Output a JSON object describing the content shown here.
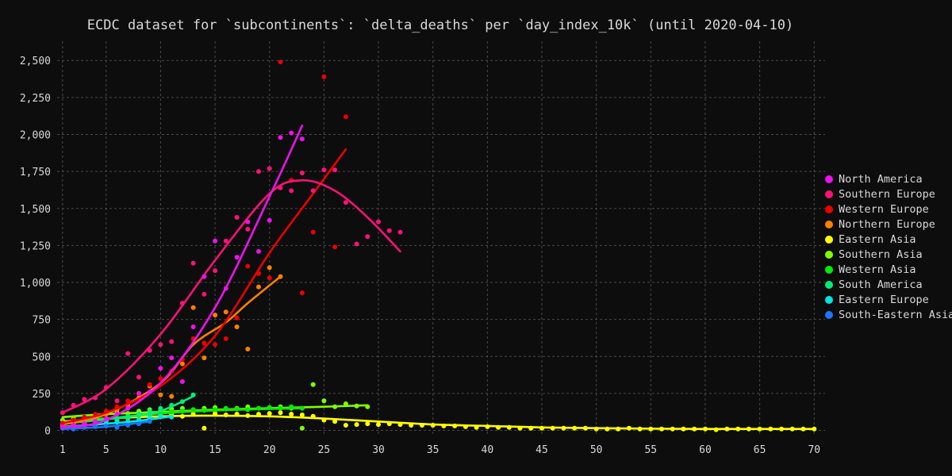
{
  "chart_data": {
    "type": "scatter",
    "title": "ECDC dataset for `subcontinents`: `delta_deaths` per `day_index_10k` (until 2020-04-10)",
    "xlabel": "",
    "ylabel": "",
    "xlim": [
      0.5,
      71
    ],
    "ylim": [
      -40,
      2630
    ],
    "x_ticks": [
      1,
      5,
      10,
      15,
      20,
      25,
      30,
      35,
      40,
      45,
      50,
      55,
      60,
      65,
      70
    ],
    "y_ticks": [
      0,
      250,
      500,
      750,
      1000,
      1250,
      1500,
      1750,
      2000,
      2250,
      2500
    ],
    "y_tick_labels": [
      "0",
      "250",
      "500",
      "750",
      "1,000",
      "1,250",
      "1,500",
      "1,750",
      "2,000",
      "2,250",
      "2,500"
    ],
    "grid": true,
    "legend_position": "right",
    "trend_lines": true,
    "series": [
      {
        "name": "Eastern Asia",
        "color": "#ffff00",
        "x": [
          1,
          2,
          3,
          4,
          5,
          6,
          7,
          8,
          9,
          10,
          11,
          12,
          13,
          14,
          15,
          16,
          17,
          18,
          19,
          20,
          21,
          22,
          23,
          24,
          25,
          26,
          27,
          28,
          29,
          30,
          31,
          32,
          33,
          34,
          35,
          36,
          37,
          38,
          39,
          40,
          41,
          42,
          43,
          44,
          45,
          46,
          47,
          48,
          49,
          50,
          51,
          52,
          53,
          54,
          55,
          56,
          57,
          58,
          59,
          60,
          61,
          62,
          63,
          64,
          65,
          66,
          67,
          68,
          69,
          70
        ],
        "y": [
          25,
          30,
          45,
          60,
          65,
          70,
          85,
          90,
          100,
          105,
          110,
          95,
          110,
          15,
          115,
          105,
          110,
          100,
          110,
          115,
          120,
          110,
          105,
          95,
          70,
          60,
          35,
          40,
          45,
          40,
          45,
          40,
          35,
          35,
          35,
          30,
          30,
          25,
          20,
          25,
          20,
          20,
          15,
          15,
          15,
          15,
          15,
          15,
          15,
          10,
          10,
          10,
          15,
          10,
          10,
          10,
          10,
          10,
          10,
          10,
          5,
          10,
          10,
          10,
          10,
          10,
          10,
          10,
          10,
          10
        ],
        "trend_x": [
          1,
          5,
          10,
          15,
          20,
          25,
          30,
          35,
          40,
          45,
          50,
          55,
          60,
          65,
          70
        ],
        "trend_y": [
          60,
          80,
          95,
          100,
          95,
          80,
          60,
          40,
          30,
          20,
          15,
          12,
          10,
          10,
          10
        ]
      },
      {
        "name": "Southern Asia",
        "color": "#7fff00",
        "x": [
          1,
          2,
          3,
          4,
          5,
          6,
          7,
          8,
          9,
          10,
          11,
          12,
          13,
          14,
          15,
          16,
          17,
          18,
          19,
          20,
          21,
          22,
          23,
          24,
          25,
          26,
          27,
          28,
          29
        ],
        "y": [
          70,
          80,
          90,
          100,
          110,
          120,
          115,
          130,
          140,
          135,
          145,
          150,
          140,
          150,
          155,
          145,
          150,
          160,
          150,
          155,
          160,
          150,
          15,
          310,
          200,
          160,
          180,
          165,
          160
        ],
        "trend_x": [
          1,
          5,
          10,
          15,
          20,
          25,
          29
        ],
        "trend_y": [
          90,
          110,
          125,
          140,
          150,
          160,
          170
        ]
      },
      {
        "name": "Western Asia",
        "color": "#00ee00",
        "x": [
          1,
          2,
          3,
          4,
          5,
          6,
          7,
          8,
          9,
          10,
          11,
          12,
          13,
          14,
          15,
          16,
          17,
          18,
          19,
          20,
          21,
          22,
          23
        ],
        "y": [
          30,
          40,
          50,
          60,
          70,
          80,
          90,
          100,
          110,
          115,
          125,
          130,
          140,
          135,
          140,
          150,
          145,
          140,
          150,
          155,
          150,
          160,
          150
        ],
        "trend_x": [
          1,
          5,
          10,
          15,
          20,
          23
        ],
        "trend_y": [
          50,
          80,
          115,
          135,
          145,
          150
        ]
      },
      {
        "name": "South America",
        "color": "#00ee77",
        "x": [
          1,
          2,
          3,
          4,
          5,
          6,
          7,
          8,
          9,
          10,
          11,
          12,
          13
        ],
        "y": [
          30,
          45,
          55,
          60,
          70,
          80,
          95,
          110,
          130,
          150,
          170,
          195,
          240
        ],
        "trend_x": [
          1,
          5,
          8,
          10,
          13
        ],
        "trend_y": [
          45,
          75,
          100,
          130,
          230
        ]
      },
      {
        "name": "Eastern Europe",
        "color": "#00e5e5",
        "x": [
          1,
          2,
          3,
          4,
          5,
          6,
          7,
          8,
          9,
          10,
          11
        ],
        "y": [
          20,
          30,
          35,
          45,
          50,
          55,
          60,
          70,
          85,
          95,
          90
        ],
        "trend_x": [
          1,
          5,
          8,
          11
        ],
        "trend_y": [
          25,
          45,
          65,
          95
        ]
      },
      {
        "name": "South-Eastern Asia",
        "color": "#1a75ff",
        "x": [
          1,
          2,
          3,
          4,
          5,
          6,
          7,
          8,
          9
        ],
        "y": [
          15,
          10,
          20,
          25,
          30,
          20,
          35,
          45,
          60
        ],
        "trend_x": [
          1,
          5,
          9
        ],
        "trend_y": [
          10,
          25,
          60
        ]
      },
      {
        "name": "Northern Europe",
        "color": "#ff7f00",
        "x": [
          1,
          2,
          3,
          4,
          5,
          6,
          7,
          8,
          9,
          10,
          11,
          12,
          13,
          14,
          15,
          16,
          17,
          18,
          19,
          20,
          21
        ],
        "y": [
          40,
          60,
          75,
          90,
          110,
          140,
          170,
          220,
          300,
          240,
          230,
          450,
          830,
          490,
          780,
          800,
          700,
          550,
          970,
          1100,
          1040
        ],
        "trend_x": [
          1,
          5,
          10,
          13,
          16,
          18,
          21
        ],
        "trend_y": [
          40,
          110,
          320,
          580,
          730,
          860,
          1040
        ]
      },
      {
        "name": "Western Europe",
        "color": "#ee0000",
        "x": [
          1,
          2,
          3,
          4,
          5,
          6,
          7,
          8,
          9,
          10,
          11,
          12,
          13,
          14,
          15,
          16,
          17,
          18,
          19,
          20,
          21,
          22,
          23,
          24,
          25,
          26,
          27
        ],
        "y": [
          50,
          70,
          90,
          110,
          130,
          160,
          200,
          250,
          310,
          350,
          400,
          480,
          620,
          590,
          580,
          620,
          760,
          1110,
          1060,
          1030,
          2490,
          1690,
          930,
          1340,
          2390,
          1240,
          2120
        ],
        "trend_x": [
          1,
          5,
          10,
          15,
          20,
          24,
          27
        ],
        "trend_y": [
          50,
          120,
          300,
          640,
          1200,
          1600,
          1900
        ]
      },
      {
        "name": "Southern Europe",
        "color": "#ff1177",
        "x": [
          1,
          2,
          3,
          4,
          5,
          6,
          7,
          8,
          9,
          10,
          11,
          12,
          13,
          14,
          15,
          16,
          17,
          18,
          19,
          20,
          21,
          22,
          23,
          24,
          25,
          26,
          27,
          28,
          29,
          30,
          31,
          32
        ],
        "y": [
          120,
          170,
          210,
          220,
          290,
          200,
          520,
          360,
          540,
          580,
          600,
          860,
          1130,
          920,
          1080,
          1280,
          1440,
          1360,
          1750,
          1770,
          1640,
          1620,
          1740,
          1620,
          1760,
          1760,
          1540,
          1260,
          1310,
          1410,
          1350,
          1340
        ],
        "trend_x": [
          1,
          5,
          10,
          15,
          20,
          23,
          26,
          29,
          32
        ],
        "trend_y": [
          120,
          280,
          650,
          1150,
          1600,
          1690,
          1620,
          1440,
          1210
        ]
      },
      {
        "name": "North America",
        "color": "#ee11ee",
        "x": [
          1,
          2,
          3,
          4,
          5,
          6,
          7,
          8,
          9,
          10,
          11,
          12,
          13,
          14,
          15,
          16,
          17,
          18,
          19,
          20,
          21,
          22,
          23
        ],
        "y": [
          25,
          35,
          45,
          60,
          80,
          110,
          150,
          250,
          260,
          420,
          490,
          330,
          700,
          1040,
          1280,
          960,
          1170,
          1410,
          1210,
          1420,
          1980,
          2010,
          1970
        ],
        "trend_x": [
          1,
          5,
          10,
          15,
          20,
          23
        ],
        "trend_y": [
          20,
          70,
          320,
          830,
          1580,
          2060
        ]
      }
    ],
    "legend_order": [
      "North America",
      "Southern Europe",
      "Western Europe",
      "Northern Europe",
      "Eastern Asia",
      "Southern Asia",
      "Western Asia",
      "South America",
      "Eastern Europe",
      "South-Eastern Asia"
    ],
    "legend_colors": {
      "North America": "#ee11ee",
      "Southern Europe": "#ff1177",
      "Western Europe": "#ee0000",
      "Northern Europe": "#ff7f00",
      "Eastern Asia": "#ffff00",
      "Southern Asia": "#7fff00",
      "Western Asia": "#00ee00",
      "South America": "#00ee77",
      "Eastern Europe": "#00e5e5",
      "South-Eastern Asia": "#1a75ff"
    },
    "legend_labels": [
      "North America",
      "Southern Europe",
      "Western Europe",
      "Northern Europe",
      "Eastern Asia",
      "Southern Asia",
      "Western Asia",
      "South America",
      "Eastern Europe",
      "South-Eastern Asia"
    ]
  },
  "colors": {
    "background": "#0d0d0d",
    "grid": "#4a4a4a",
    "text": "#d8d8d8"
  }
}
